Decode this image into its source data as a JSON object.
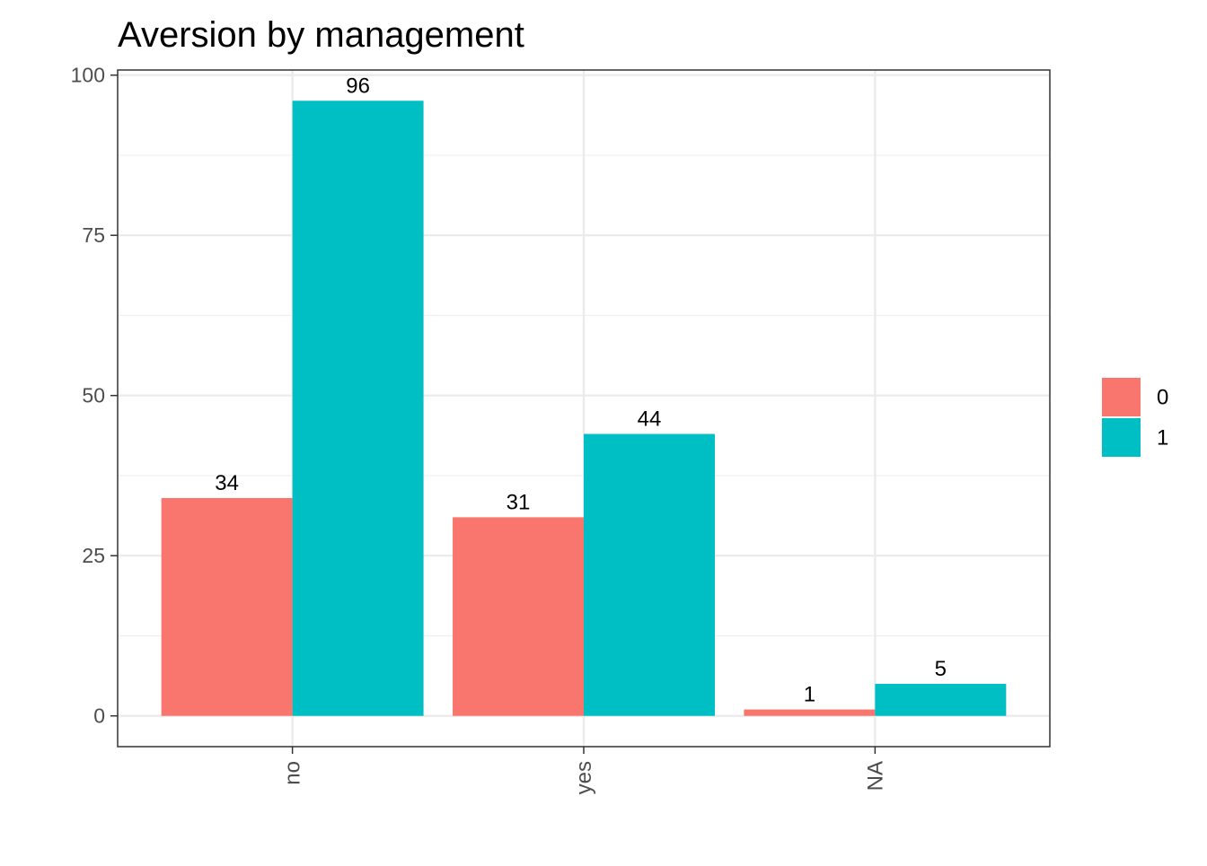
{
  "chart_data": {
    "type": "bar",
    "title": "Aversion by management",
    "xlabel": "",
    "ylabel": "",
    "categories": [
      "no",
      "yes",
      "NA"
    ],
    "series": [
      {
        "name": "0",
        "values": [
          34,
          31,
          1
        ],
        "color": "#F8766D"
      },
      {
        "name": "1",
        "values": [
          96,
          44,
          5
        ],
        "color": "#00BFC4"
      }
    ],
    "ylim": [
      -4.8,
      100.8
    ],
    "yticks": [
      0,
      25,
      50,
      75,
      100
    ],
    "grid": true,
    "legend_position": "right",
    "data_labels": true,
    "x_tick_rotation": "vertical"
  }
}
